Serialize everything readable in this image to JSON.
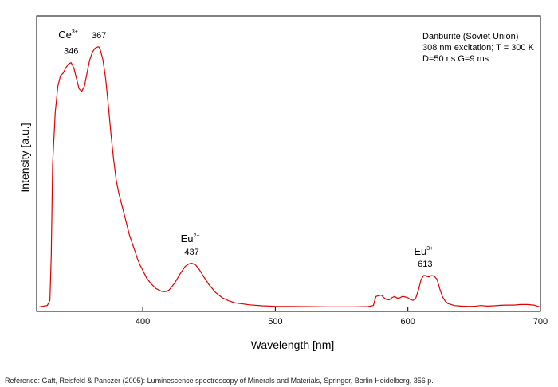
{
  "chart_data": {
    "type": "line",
    "xlabel": "Wavelength [nm]",
    "ylabel": "Intensity [a.u.]",
    "xlim": [
      320,
      700
    ],
    "ylim": [
      0,
      1
    ],
    "x_ticks": [
      400,
      500,
      600,
      700
    ],
    "y_ticks_shown": false,
    "grid": false,
    "line_color": "#e00000",
    "info_box": {
      "position": "top-right",
      "lines": [
        "Danburite (Soviet Union)",
        "308 nm excitation; T = 300 K",
        "D=50 ns G=9 ms"
      ]
    },
    "ion_labels": [
      {
        "ion": "Ce",
        "charge": "3+",
        "near_x": 345
      },
      {
        "ion": "Eu",
        "charge": "2+",
        "near_x": 437
      },
      {
        "ion": "Eu",
        "charge": "3+",
        "near_x": 613
      }
    ],
    "peak_labels": [
      {
        "text": "346",
        "x": 346,
        "y": 0.94
      },
      {
        "text": "367",
        "x": 367,
        "y": 1.0
      },
      {
        "text": "437",
        "x": 437,
        "y": 0.17
      },
      {
        "text": "613",
        "x": 613,
        "y": 0.125
      }
    ],
    "series": [
      {
        "x": [
          322,
          328,
          330,
          331,
          332,
          334,
          336,
          338,
          340,
          342,
          344,
          346,
          348,
          350,
          352,
          354,
          356,
          358,
          360,
          362,
          364,
          366,
          367,
          368,
          370,
          372,
          374,
          376,
          378,
          380,
          382,
          384,
          386,
          388,
          390,
          392,
          394,
          396,
          398,
          400,
          403,
          406,
          410,
          414,
          416,
          418,
          420,
          424,
          428,
          432,
          435,
          437,
          440,
          443,
          446,
          450,
          455,
          460,
          465,
          470,
          480,
          490,
          500,
          520,
          540,
          560,
          570,
          574,
          575,
          576,
          578,
          580,
          582,
          584,
          586,
          588,
          590,
          592,
          594,
          596,
          598,
          600,
          602,
          604,
          606,
          608,
          610,
          612,
          613,
          614,
          616,
          618,
          620,
          622,
          624,
          626,
          628,
          630,
          635,
          640,
          645,
          650,
          655,
          660,
          665,
          670,
          675,
          680,
          685,
          690,
          695,
          700
        ],
        "y": [
          0.005,
          0.01,
          0.03,
          0.2,
          0.55,
          0.75,
          0.85,
          0.89,
          0.9,
          0.92,
          0.935,
          0.94,
          0.92,
          0.88,
          0.84,
          0.83,
          0.85,
          0.9,
          0.95,
          0.98,
          0.995,
          1.0,
          1.0,
          0.99,
          0.95,
          0.88,
          0.78,
          0.67,
          0.57,
          0.49,
          0.44,
          0.4,
          0.36,
          0.32,
          0.28,
          0.25,
          0.22,
          0.19,
          0.165,
          0.145,
          0.115,
          0.095,
          0.075,
          0.065,
          0.063,
          0.064,
          0.07,
          0.095,
          0.13,
          0.16,
          0.17,
          0.172,
          0.165,
          0.145,
          0.12,
          0.09,
          0.06,
          0.04,
          0.028,
          0.02,
          0.013,
          0.009,
          0.007,
          0.006,
          0.005,
          0.005,
          0.006,
          0.01,
          0.03,
          0.045,
          0.048,
          0.05,
          0.04,
          0.033,
          0.032,
          0.04,
          0.045,
          0.038,
          0.04,
          0.045,
          0.043,
          0.04,
          0.033,
          0.03,
          0.04,
          0.07,
          0.11,
          0.125,
          0.125,
          0.122,
          0.12,
          0.125,
          0.122,
          0.11,
          0.075,
          0.045,
          0.028,
          0.018,
          0.01,
          0.008,
          0.007,
          0.007,
          0.01,
          0.008,
          0.009,
          0.011,
          0.012,
          0.012,
          0.014,
          0.014,
          0.012,
          0.004
        ]
      }
    ]
  },
  "footer": {
    "reference": "Reference: Gaft, Reisfeld & Panczer (2005): Luminescence spectroscopy of Minerals and Materials, Springer, Berlin Heidelberg, 356 p."
  }
}
